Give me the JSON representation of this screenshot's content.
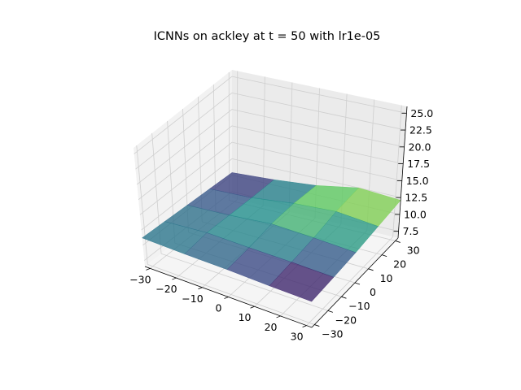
{
  "chart_data": {
    "type": "surface3d",
    "title": "ICNNs on ackley at t = 50 with lr1e-05",
    "xlabel": "",
    "ylabel": "",
    "zlabel": "",
    "x_ticks": [
      "−30",
      "−20",
      "−10",
      "0",
      "10",
      "20",
      "30"
    ],
    "y_ticks": [
      "−30",
      "−20",
      "−10",
      "0",
      "10",
      "20",
      "30"
    ],
    "z_ticks": [
      "7.5",
      "10.0",
      "12.5",
      "15.0",
      "17.5",
      "20.0",
      "22.5",
      "25.0"
    ],
    "xlim": [
      -32,
      32
    ],
    "ylim": [
      -32,
      32
    ],
    "zlim": [
      6.5,
      26
    ],
    "grid": true,
    "colormap": "viridis",
    "surface_grid": {
      "x": [
        -32,
        -16,
        0,
        16,
        32
      ],
      "y": [
        -32,
        -16,
        0,
        16,
        32
      ],
      "z": [
        [
          11.2,
          10.9,
          10.7,
          10.4,
          10.2
        ],
        [
          11.0,
          11.3,
          11.0,
          10.8,
          10.5
        ],
        [
          10.8,
          11.1,
          11.6,
          11.3,
          10.9
        ],
        [
          10.6,
          10.9,
          11.7,
          12.1,
          11.5
        ],
        [
          10.4,
          10.8,
          11.4,
          12.5,
          12.1
        ]
      ]
    }
  }
}
